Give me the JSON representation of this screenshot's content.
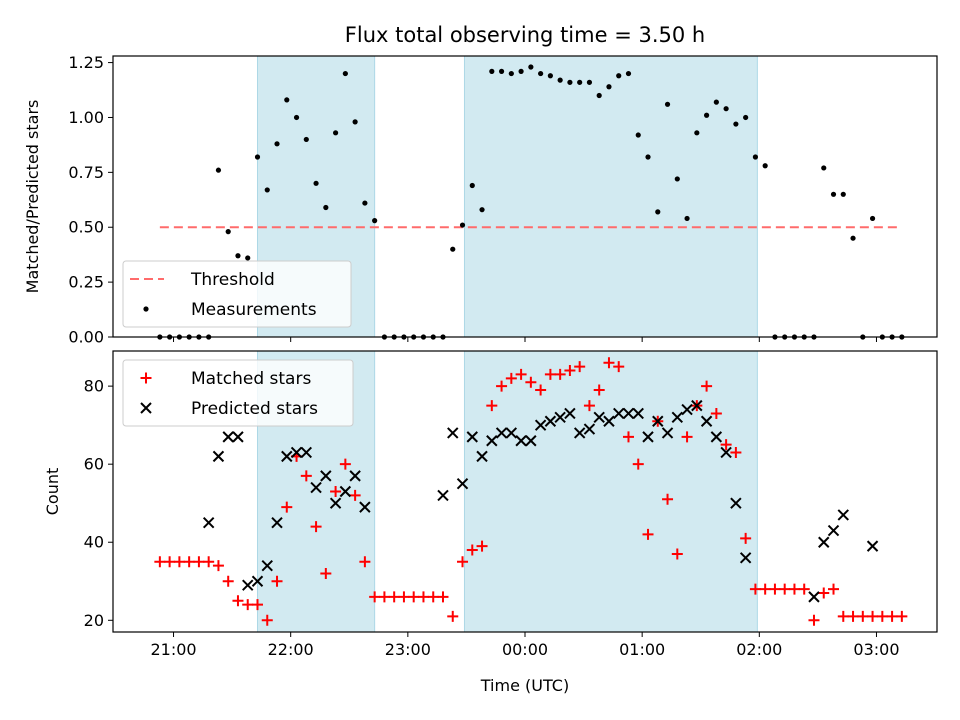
{
  "chart_data": {
    "title": "Flux total observing time = 3.50 h",
    "xlabel": "Time (UTC)",
    "x_unit": "hours (UTC clock time, values past 24 are after midnight)",
    "x_ticks": [
      {
        "value": 21,
        "label": "21:00"
      },
      {
        "value": 22,
        "label": "22:00"
      },
      {
        "value": 23,
        "label": "23:00"
      },
      {
        "value": 24,
        "label": "00:00"
      },
      {
        "value": 25,
        "label": "01:00"
      },
      {
        "value": 26,
        "label": "02:00"
      },
      {
        "value": 27,
        "label": "03:00"
      }
    ],
    "xlim": [
      "20:29",
      "03:31"
    ],
    "shaded_intervals": [
      {
        "start": "21:43",
        "end": "22:43"
      },
      {
        "start": "23:29",
        "end": "01:59"
      }
    ],
    "shade_color": "#add8e6",
    "panels": [
      {
        "type": "scatter",
        "ylabel": "Matched/Predicted stars",
        "ylim": [
          0,
          1.28
        ],
        "y_ticks": [
          "0.00",
          "0.25",
          "0.50",
          "0.75",
          "1.00",
          "1.25"
        ],
        "threshold": {
          "name": "Threshold",
          "y": 0.5,
          "from": "20:53",
          "to": "03:13",
          "color": "#ff6b6b"
        },
        "series": [
          {
            "name": "Measurements",
            "marker": "dot",
            "color": "#000000",
            "points": [
              [
                "20:53",
                0
              ],
              [
                "20:58",
                0
              ],
              [
                "21:03",
                0
              ],
              [
                "21:08",
                0
              ],
              [
                "21:13",
                0
              ],
              [
                "21:18",
                0
              ],
              [
                "21:23",
                0.76
              ],
              [
                "21:28",
                0.48
              ],
              [
                "21:33",
                0.37
              ],
              [
                "21:38",
                0.36
              ],
              [
                "21:43",
                0.82
              ],
              [
                "21:48",
                0.67
              ],
              [
                "21:53",
                0.88
              ],
              [
                "21:58",
                1.08
              ],
              [
                "22:03",
                1.0
              ],
              [
                "22:08",
                0.9
              ],
              [
                "22:13",
                0.7
              ],
              [
                "22:18",
                0.59
              ],
              [
                "22:23",
                0.93
              ],
              [
                "22:28",
                1.2
              ],
              [
                "22:33",
                0.98
              ],
              [
                "22:38",
                0.61
              ],
              [
                "22:43",
                0.53
              ],
              [
                "22:48",
                0
              ],
              [
                "22:53",
                0
              ],
              [
                "22:58",
                0
              ],
              [
                "23:03",
                0
              ],
              [
                "23:08",
                0
              ],
              [
                "23:13",
                0
              ],
              [
                "23:18",
                0
              ],
              [
                "23:23",
                0.4
              ],
              [
                "23:28",
                0.51
              ],
              [
                "23:33",
                0.69
              ],
              [
                "23:38",
                0.58
              ],
              [
                "23:43",
                1.21
              ],
              [
                "23:48",
                1.21
              ],
              [
                "23:53",
                1.2
              ],
              [
                "23:58",
                1.21
              ],
              [
                "00:03",
                1.23
              ],
              [
                "00:08",
                1.2
              ],
              [
                "00:13",
                1.19
              ],
              [
                "00:18",
                1.17
              ],
              [
                "00:23",
                1.16
              ],
              [
                "00:28",
                1.16
              ],
              [
                "00:33",
                1.16
              ],
              [
                "00:38",
                1.1
              ],
              [
                "00:43",
                1.14
              ],
              [
                "00:48",
                1.19
              ],
              [
                "00:53",
                1.2
              ],
              [
                "00:58",
                0.92
              ],
              [
                "01:03",
                0.82
              ],
              [
                "01:08",
                0.57
              ],
              [
                "01:13",
                1.06
              ],
              [
                "01:18",
                0.72
              ],
              [
                "01:23",
                0.54
              ],
              [
                "01:28",
                0.93
              ],
              [
                "01:33",
                1.01
              ],
              [
                "01:38",
                1.07
              ],
              [
                "01:43",
                1.04
              ],
              [
                "01:48",
                0.97
              ],
              [
                "01:53",
                1.0
              ],
              [
                "01:58",
                0.82
              ],
              [
                "02:03",
                0.78
              ],
              [
                "02:08",
                0
              ],
              [
                "02:13",
                0
              ],
              [
                "02:18",
                0
              ],
              [
                "02:23",
                0
              ],
              [
                "02:28",
                0
              ],
              [
                "02:33",
                0.77
              ],
              [
                "02:38",
                0.65
              ],
              [
                "02:43",
                0.65
              ],
              [
                "02:48",
                0.45
              ],
              [
                "02:53",
                0
              ],
              [
                "02:58",
                0.54
              ],
              [
                "03:03",
                0
              ],
              [
                "03:08",
                0
              ],
              [
                "03:13",
                0
              ]
            ]
          }
        ],
        "legend": {
          "position": "lower-left",
          "entries": [
            "Threshold",
            "Measurements"
          ]
        }
      },
      {
        "type": "scatter",
        "ylabel": "Count",
        "ylim": [
          17,
          89
        ],
        "y_ticks": [
          "20",
          "40",
          "60",
          "80"
        ],
        "series": [
          {
            "name": "Matched stars",
            "marker": "plus",
            "color": "#ff0000",
            "points": [
              [
                "20:53",
                35
              ],
              [
                "20:58",
                35
              ],
              [
                "21:03",
                35
              ],
              [
                "21:08",
                35
              ],
              [
                "21:13",
                35
              ],
              [
                "21:18",
                35
              ],
              [
                "21:23",
                34
              ],
              [
                "21:28",
                30
              ],
              [
                "21:33",
                25
              ],
              [
                "21:38",
                24
              ],
              [
                "21:43",
                24
              ],
              [
                "21:48",
                20
              ],
              [
                "21:53",
                30
              ],
              [
                "21:58",
                49
              ],
              [
                "22:03",
                62
              ],
              [
                "22:08",
                57
              ],
              [
                "22:13",
                44
              ],
              [
                "22:18",
                32
              ],
              [
                "22:23",
                53
              ],
              [
                "22:28",
                60
              ],
              [
                "22:33",
                52
              ],
              [
                "22:38",
                35
              ],
              [
                "22:43",
                26
              ],
              [
                "22:48",
                26
              ],
              [
                "22:53",
                26
              ],
              [
                "22:58",
                26
              ],
              [
                "23:03",
                26
              ],
              [
                "23:08",
                26
              ],
              [
                "23:13",
                26
              ],
              [
                "23:18",
                26
              ],
              [
                "23:23",
                21
              ],
              [
                "23:28",
                35
              ],
              [
                "23:33",
                38
              ],
              [
                "23:38",
                39
              ],
              [
                "23:43",
                75
              ],
              [
                "23:48",
                80
              ],
              [
                "23:53",
                82
              ],
              [
                "23:58",
                83
              ],
              [
                "00:03",
                81
              ],
              [
                "00:08",
                79
              ],
              [
                "00:13",
                83
              ],
              [
                "00:18",
                83
              ],
              [
                "00:23",
                84
              ],
              [
                "00:28",
                85
              ],
              [
                "00:33",
                75
              ],
              [
                "00:38",
                79
              ],
              [
                "00:43",
                86
              ],
              [
                "00:48",
                85
              ],
              [
                "00:53",
                67
              ],
              [
                "00:58",
                60
              ],
              [
                "01:03",
                42
              ],
              [
                "01:08",
                71
              ],
              [
                "01:13",
                51
              ],
              [
                "01:18",
                37
              ],
              [
                "01:23",
                67
              ],
              [
                "01:28",
                75
              ],
              [
                "01:33",
                80
              ],
              [
                "01:38",
                73
              ],
              [
                "01:43",
                65
              ],
              [
                "01:48",
                63
              ],
              [
                "01:53",
                41
              ],
              [
                "01:58",
                28
              ],
              [
                "02:03",
                28
              ],
              [
                "02:08",
                28
              ],
              [
                "02:13",
                28
              ],
              [
                "02:18",
                28
              ],
              [
                "02:23",
                28
              ],
              [
                "02:28",
                20
              ],
              [
                "02:33",
                27
              ],
              [
                "02:38",
                28
              ],
              [
                "02:43",
                21
              ],
              [
                "02:48",
                21
              ],
              [
                "02:53",
                21
              ],
              [
                "02:58",
                21
              ],
              [
                "03:03",
                21
              ],
              [
                "03:08",
                21
              ],
              [
                "03:13",
                21
              ]
            ]
          },
          {
            "name": "Predicted stars",
            "marker": "x",
            "color": "#000000",
            "points": [
              [
                "21:18",
                45
              ],
              [
                "21:23",
                62
              ],
              [
                "21:28",
                67
              ],
              [
                "21:33",
                67
              ],
              [
                "21:38",
                29
              ],
              [
                "21:43",
                30
              ],
              [
                "21:48",
                34
              ],
              [
                "21:53",
                45
              ],
              [
                "21:58",
                62
              ],
              [
                "22:03",
                63
              ],
              [
                "22:08",
                63
              ],
              [
                "22:13",
                54
              ],
              [
                "22:18",
                57
              ],
              [
                "22:23",
                50
              ],
              [
                "22:28",
                53
              ],
              [
                "22:33",
                57
              ],
              [
                "22:38",
                49
              ],
              [
                "23:18",
                52
              ],
              [
                "23:23",
                68
              ],
              [
                "23:28",
                55
              ],
              [
                "23:33",
                67
              ],
              [
                "23:38",
                62
              ],
              [
                "23:43",
                66
              ],
              [
                "23:48",
                68
              ],
              [
                "23:53",
                68
              ],
              [
                "23:58",
                66
              ],
              [
                "00:03",
                66
              ],
              [
                "00:08",
                70
              ],
              [
                "00:13",
                71
              ],
              [
                "00:18",
                72
              ],
              [
                "00:23",
                73
              ],
              [
                "00:28",
                68
              ],
              [
                "00:33",
                69
              ],
              [
                "00:38",
                72
              ],
              [
                "00:43",
                71
              ],
              [
                "00:48",
                73
              ],
              [
                "00:53",
                73
              ],
              [
                "00:58",
                73
              ],
              [
                "01:03",
                67
              ],
              [
                "01:08",
                71
              ],
              [
                "01:13",
                68
              ],
              [
                "01:18",
                72
              ],
              [
                "01:23",
                74
              ],
              [
                "01:28",
                75
              ],
              [
                "01:33",
                71
              ],
              [
                "01:38",
                67
              ],
              [
                "01:43",
                63
              ],
              [
                "01:48",
                50
              ],
              [
                "01:53",
                36
              ],
              [
                "02:28",
                26
              ],
              [
                "02:33",
                40
              ],
              [
                "02:38",
                43
              ],
              [
                "02:43",
                47
              ],
              [
                "02:58",
                39
              ]
            ]
          }
        ],
        "legend": {
          "position": "upper-left",
          "entries": [
            "Matched stars",
            "Predicted stars"
          ]
        }
      }
    ]
  }
}
